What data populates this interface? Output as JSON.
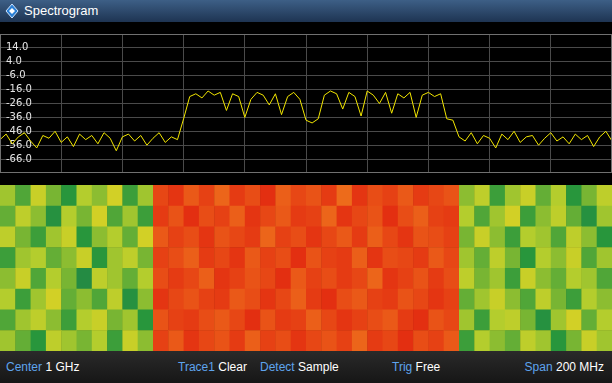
{
  "chart_data": {
    "type": "line",
    "title": "Spectrogram",
    "color": "#f2e600",
    "grid": true,
    "tick_labels": "y",
    "xlim": [
      900,
      1100
    ],
    "xticks": [
      900,
      920,
      940,
      960,
      980,
      1000,
      1020,
      1040,
      1060,
      1080,
      1100
    ],
    "ylim": [
      -76,
      24
    ],
    "yticks": [
      {
        "value": 14,
        "label": "14.0"
      },
      {
        "value": 4,
        "label": "4.0"
      },
      {
        "value": -6,
        "label": "-6.0"
      },
      {
        "value": -16,
        "label": "-16.0"
      },
      {
        "value": -26,
        "label": "-26.0"
      },
      {
        "value": -36,
        "label": "-36.0"
      },
      {
        "value": -46,
        "label": "-46.0"
      },
      {
        "value": -56,
        "label": "-56.0"
      },
      {
        "value": -66,
        "label": "-66.0"
      }
    ],
    "x": [
      900,
      902,
      904,
      906,
      908,
      910,
      912,
      914,
      916,
      918,
      920,
      922,
      924,
      926,
      928,
      930,
      932,
      934,
      936,
      938,
      940,
      942,
      944,
      946,
      948,
      950,
      952,
      954,
      956,
      958,
      960,
      962,
      964,
      966,
      968,
      970,
      972,
      974,
      976,
      978,
      980,
      982,
      984,
      986,
      988,
      990,
      992,
      994,
      996,
      998,
      1000,
      1002,
      1004,
      1006,
      1008,
      1010,
      1012,
      1014,
      1016,
      1018,
      1020,
      1022,
      1024,
      1026,
      1028,
      1030,
      1032,
      1034,
      1036,
      1038,
      1040,
      1042,
      1044,
      1046,
      1048,
      1050,
      1052,
      1054,
      1056,
      1058,
      1060,
      1062,
      1064,
      1066,
      1068,
      1070,
      1072,
      1074,
      1076,
      1078,
      1080,
      1082,
      1084,
      1086,
      1088,
      1090,
      1092,
      1094,
      1096,
      1098,
      1100
    ],
    "values": [
      -52,
      -48,
      -55,
      -50,
      -47,
      -53,
      -58,
      -49,
      -51,
      -46,
      -54,
      -50,
      -57,
      -48,
      -52,
      -49,
      -55,
      -47,
      -51,
      -60,
      -50,
      -48,
      -53,
      -49,
      -56,
      -51,
      -47,
      -54,
      -50,
      -52,
      -37,
      -21,
      -19,
      -22,
      -17,
      -20,
      -18,
      -31,
      -19,
      -21,
      -36,
      -23,
      -18,
      -20,
      -27,
      -19,
      -34,
      -21,
      -18,
      -23,
      -38,
      -40,
      -37,
      -20,
      -17,
      -19,
      -30,
      -18,
      -21,
      -35,
      -17,
      -20,
      -26,
      -18,
      -33,
      -19,
      -22,
      -18,
      -36,
      -20,
      -18,
      -21,
      -19,
      -37,
      -38,
      -50,
      -53,
      -47,
      -55,
      -49,
      -51,
      -58,
      -48,
      -52,
      -46,
      -54,
      -50,
      -49,
      -56,
      -51,
      -47,
      -53,
      -50,
      -55,
      -48,
      -52,
      -49,
      -57,
      -50,
      -46,
      -53
    ],
    "spectrogram": {
      "x_edges": [
        900,
        905,
        910,
        915,
        920,
        925,
        930,
        935,
        940,
        945,
        950,
        955,
        960,
        965,
        970,
        975,
        980,
        985,
        990,
        995,
        1000,
        1005,
        1010,
        1015,
        1020,
        1025,
        1030,
        1035,
        1040,
        1045,
        1050,
        1055,
        1060,
        1065,
        1070,
        1075,
        1080,
        1085,
        1090,
        1095,
        1100
      ],
      "levels": [
        [
          -50,
          -54,
          -47,
          -52,
          -56,
          -49,
          -51,
          -46,
          -55,
          -50,
          -22,
          -19,
          -25,
          -21,
          -27,
          -20,
          -23,
          -18,
          -26,
          -22,
          -24,
          -20,
          -28,
          -19,
          -23,
          -21,
          -25,
          -20,
          -22,
          -24,
          -51,
          -48,
          -55,
          -50,
          -47,
          -53,
          -49,
          -56,
          -52,
          -48
        ],
        [
          -53,
          -48,
          -51,
          -57,
          -49,
          -52,
          -46,
          -54,
          -50,
          -55,
          -20,
          -24,
          -18,
          -23,
          -21,
          -26,
          -19,
          -22,
          -25,
          -20,
          -21,
          -27,
          -19,
          -22,
          -24,
          -18,
          -23,
          -26,
          -21,
          -20,
          -49,
          -54,
          -50,
          -46,
          -55,
          -51,
          -48,
          -53,
          -57,
          -50
        ],
        [
          -48,
          -52,
          -55,
          -50,
          -47,
          -56,
          -51,
          -49,
          -53,
          -46,
          -25,
          -21,
          -23,
          -19,
          -24,
          -22,
          -20,
          -27,
          -21,
          -23,
          -19,
          -22,
          -25,
          -20,
          -26,
          -22,
          -19,
          -24,
          -23,
          -21,
          -52,
          -47,
          -51,
          -55,
          -49,
          -50,
          -54,
          -48,
          -51,
          -56
        ],
        [
          -55,
          -50,
          -49,
          -53,
          -51,
          -47,
          -56,
          -50,
          -48,
          -52,
          -21,
          -23,
          -26,
          -20,
          -22,
          -19,
          -25,
          -21,
          -23,
          -18,
          -24,
          -21,
          -20,
          -26,
          -19,
          -23,
          -22,
          -20,
          -25,
          -22,
          -50,
          -53,
          -48,
          -52,
          -56,
          -49,
          -51,
          -47,
          -54,
          -50
        ],
        [
          -51,
          -47,
          -54,
          -49,
          -52,
          -58,
          -48,
          -50,
          -53,
          -49,
          -23,
          -20,
          -22,
          -26,
          -19,
          -21,
          -24,
          -22,
          -18,
          -25,
          -21,
          -23,
          -20,
          -22,
          -27,
          -19,
          -21,
          -24,
          -20,
          -23,
          -48,
          -52,
          -50,
          -55,
          -47,
          -51,
          -53,
          -49,
          -50,
          -54
        ],
        [
          -49,
          -55,
          -50,
          -46,
          -53,
          -51,
          -54,
          -48,
          -57,
          -51,
          -19,
          -22,
          -24,
          -21,
          -20,
          -25,
          -23,
          -19,
          -22,
          -26,
          -20,
          -18,
          -23,
          -25,
          -21,
          -20,
          -24,
          -22,
          -19,
          -21,
          -53,
          -50,
          -47,
          -51,
          -54,
          -48,
          -52,
          -55,
          -49,
          -51
        ],
        [
          -54,
          -50,
          -48,
          -51,
          -55,
          -49,
          -47,
          -52,
          -50,
          -56,
          -24,
          -21,
          -20,
          -23,
          -25,
          -22,
          -18,
          -24,
          -20,
          -21,
          -26,
          -22,
          -19,
          -21,
          -23,
          -25,
          -20,
          -18,
          -24,
          -22,
          -50,
          -55,
          -49,
          -48,
          -52,
          -57,
          -50,
          -46,
          -53,
          -49
        ],
        [
          -50,
          -53,
          -56,
          -48,
          -50,
          -52,
          -49,
          -55,
          -47,
          -51,
          -21,
          -25,
          -19,
          -22,
          -24,
          -20,
          -26,
          -21,
          -23,
          -19,
          -22,
          -24,
          -21,
          -27,
          -20,
          -22,
          -18,
          -23,
          -21,
          -25,
          -55,
          -49,
          -51,
          -53,
          -48,
          -50,
          -56,
          -52,
          -47,
          -50
        ]
      ]
    },
    "annotations": [
      {
        "label": "Center",
        "value": "1 GHz"
      },
      {
        "label": "Trace1",
        "value": "Clear"
      },
      {
        "label": "Detect",
        "value": "Sample"
      },
      {
        "label": "Trig",
        "value": "Free"
      },
      {
        "label": "Span",
        "value": "200 MHz"
      }
    ]
  }
}
